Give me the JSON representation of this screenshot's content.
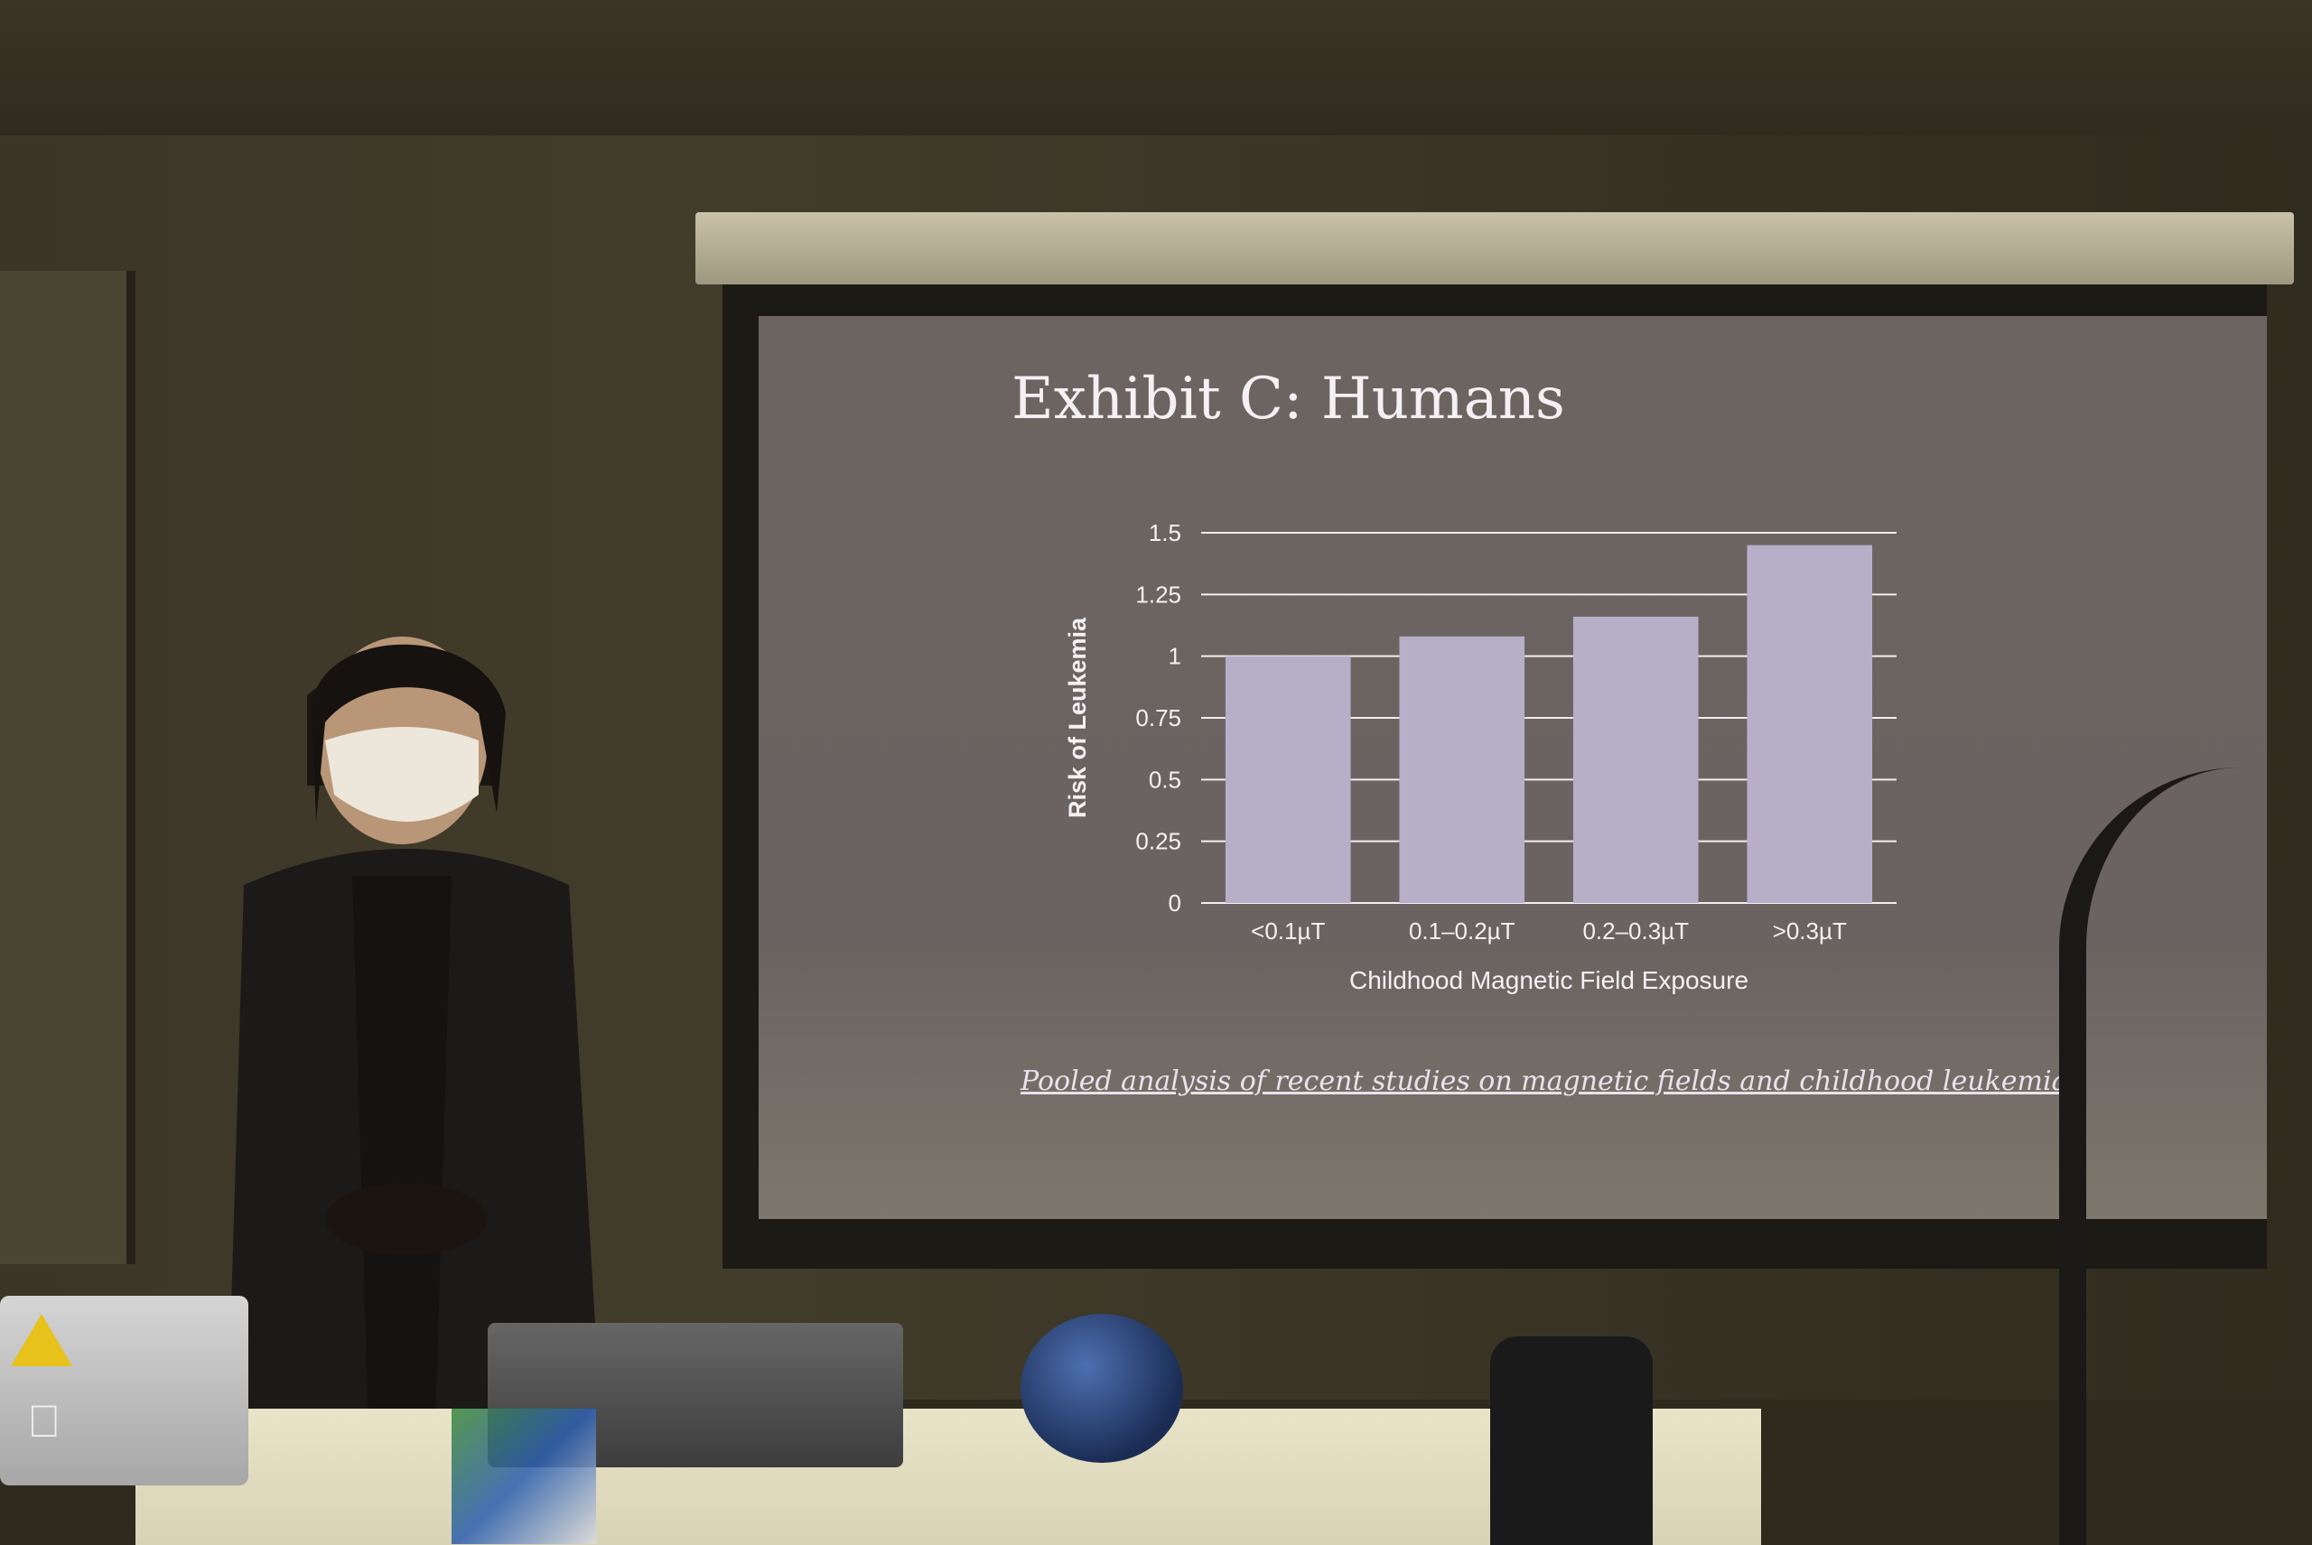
{
  "slide": {
    "title": "Exhibit C: Humans",
    "caption": "Pooled analysis of recent studies on magnetic fields and childhood leukemia"
  },
  "chart_data": {
    "type": "bar",
    "categories": [
      "<0.1µT",
      "0.1–0.2µT",
      "0.2–0.3µT",
      ">0.3µT"
    ],
    "values": [
      1.0,
      1.08,
      1.16,
      1.45
    ],
    "xlabel": "Childhood Magnetic Field Exposure",
    "ylabel": "Risk of Leukemia",
    "ylim": [
      0,
      1.5
    ],
    "yticks": [
      "0",
      "0.25",
      "0.5",
      "0.75",
      "1",
      "1.25",
      "1.5"
    ],
    "grid": true,
    "bar_color": "#b7aec8"
  },
  "colors": {
    "screen": "#6c6461",
    "text": "#f4f0f4"
  }
}
